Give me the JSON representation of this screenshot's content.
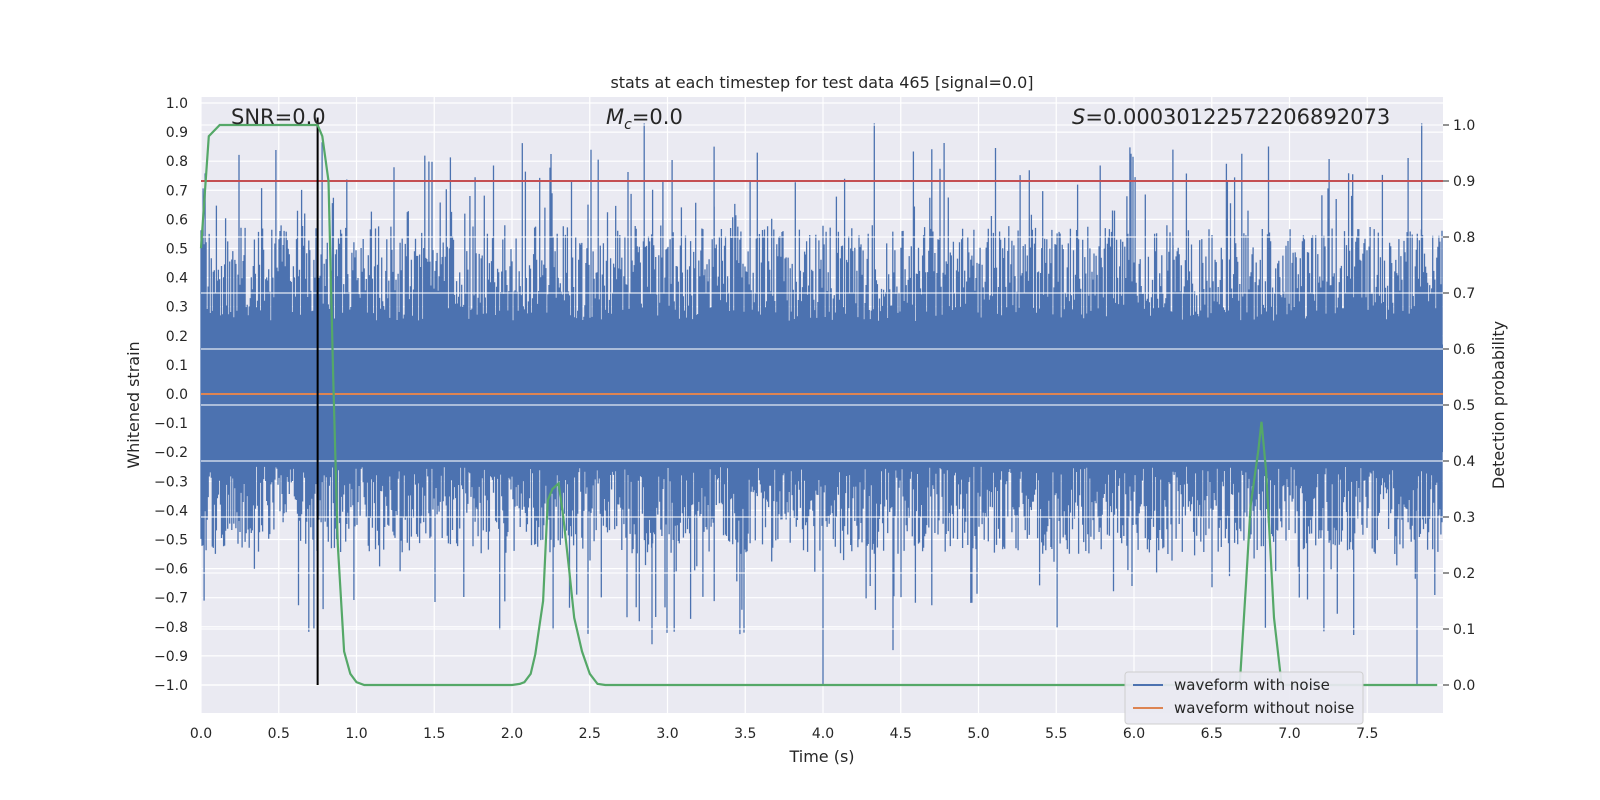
{
  "chart_data": {
    "type": "line",
    "title": "stats at each timestep for test data 465 [signal=0.0]",
    "xlabel": "Time (s)",
    "ylabel_left": "Whitened strain",
    "ylabel_right": "Detection probability",
    "xlim": [
      0.0,
      8.0
    ],
    "ylim_left": [
      -1.1,
      1.05
    ],
    "ylim_right": [
      -0.05,
      1.05
    ],
    "x_ticks": [
      "0.0",
      "0.5",
      "1.0",
      "1.5",
      "2.0",
      "2.5",
      "3.0",
      "3.5",
      "4.0",
      "4.5",
      "5.0",
      "5.5",
      "6.0",
      "6.5",
      "7.0",
      "7.5"
    ],
    "y_ticks_left": [
      "1.0",
      "0.9",
      "0.8",
      "0.7",
      "0.6",
      "0.5",
      "0.4",
      "0.3",
      "0.2",
      "0.1",
      "0.0",
      "−0.1",
      "−0.2",
      "−0.3",
      "−0.4",
      "−0.5",
      "−0.6",
      "−0.7",
      "−0.8",
      "−0.9",
      "−1.0"
    ],
    "y_ticks_right": [
      "1.0",
      "0.9",
      "0.8",
      "0.7",
      "0.6",
      "0.5",
      "0.4",
      "0.3",
      "0.2",
      "0.1",
      "0.0"
    ],
    "annotations": {
      "snr": "SNR=0.0",
      "mc_symbol": "M",
      "mc_sub": "c",
      "mc_value": "=0.0",
      "s_symbol": "S",
      "s_value": "=0.00030122572206892073"
    },
    "threshold": 0.9,
    "marker_time": 0.75,
    "series": [
      {
        "name": "waveform with noise",
        "color": "#4c72b0",
        "envelope": {
          "upper_typical": [
            0.3,
            0.6
          ],
          "upper_peaks_max": 0.93,
          "lower_typical": [
            -0.6,
            -0.3
          ],
          "lower_peaks_min": -1.0
        }
      },
      {
        "name": "waveform without noise",
        "color": "#dd8452",
        "values": [
          0.0,
          0.0
        ]
      },
      {
        "name": "detection probability",
        "color": "#55a868",
        "x": [
          0.0,
          0.05,
          0.12,
          0.2,
          0.3,
          0.4,
          0.5,
          0.6,
          0.7,
          0.75,
          0.78,
          0.82,
          0.85,
          0.88,
          0.92,
          0.96,
          1.0,
          1.05,
          1.1,
          1.5,
          2.0,
          2.05,
          2.08,
          2.12,
          2.15,
          2.2,
          2.23,
          2.26,
          2.3,
          2.33,
          2.37,
          2.4,
          2.45,
          2.5,
          2.55,
          2.6,
          2.65,
          3.0,
          4.0,
          5.0,
          6.0,
          6.5,
          6.68,
          6.72,
          6.75,
          6.8,
          6.82,
          6.85,
          6.9,
          6.95,
          7.0,
          7.5,
          7.95
        ],
        "y": [
          0.78,
          0.98,
          1.0,
          1.0,
          1.0,
          1.0,
          1.0,
          1.0,
          1.0,
          1.0,
          0.98,
          0.9,
          0.55,
          0.25,
          0.06,
          0.02,
          0.005,
          0.0,
          0.0,
          0.0,
          0.0,
          0.002,
          0.005,
          0.02,
          0.055,
          0.15,
          0.33,
          0.35,
          0.36,
          0.3,
          0.2,
          0.12,
          0.06,
          0.02,
          0.002,
          0.0,
          0.0,
          0.0,
          0.0,
          0.0,
          0.0,
          0.0,
          0.0,
          0.18,
          0.32,
          0.42,
          0.47,
          0.38,
          0.12,
          0.0,
          0.0,
          0.0,
          0.0
        ]
      }
    ],
    "legend": [
      "waveform with noise",
      "waveform without noise"
    ],
    "legend_position": "lower-right",
    "grid": true,
    "colors": {
      "background": "#eaeaf2",
      "grid": "#ffffff",
      "threshold": "#c44e52",
      "marker": "#000000"
    }
  }
}
